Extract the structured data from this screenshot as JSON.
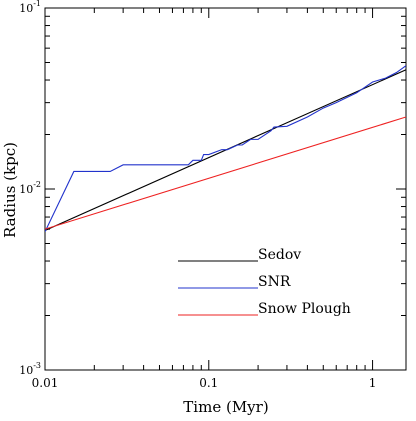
{
  "chart_data": {
    "type": "line",
    "title": "",
    "xlabel": "Time (Myr)",
    "ylabel": "Radius (kpc)",
    "xscale": "log",
    "yscale": "log",
    "xlim": [
      0.01,
      1.6
    ],
    "ylim": [
      0.001,
      0.1
    ],
    "grid": false,
    "legend_placement": "lower-center",
    "x_tick_labels": [
      {
        "value": 0.01,
        "label": "0.01"
      },
      {
        "value": 0.1,
        "label": "0.1"
      },
      {
        "value": 1,
        "label": "1"
      }
    ],
    "y_tick_labels": [
      {
        "value": 0.001,
        "base": "10",
        "exp": "-3"
      },
      {
        "value": 0.01,
        "base": "10",
        "exp": "-2"
      },
      {
        "value": 0.1,
        "base": "10",
        "exp": "-1"
      }
    ],
    "series": [
      {
        "name": "Sedov",
        "color": "#000000",
        "x": [
          0.01,
          1.6
        ],
        "y": [
          0.0059,
          0.0456
        ]
      },
      {
        "name": "SNR",
        "color": "#2233cc",
        "x": [
          0.01,
          0.015,
          0.025,
          0.03,
          0.075,
          0.08,
          0.09,
          0.093,
          0.1,
          0.12,
          0.13,
          0.15,
          0.16,
          0.18,
          0.2,
          0.24,
          0.25,
          0.3,
          0.4,
          0.5,
          0.6,
          0.8,
          1.0,
          1.2,
          1.4,
          1.6
        ],
        "y": [
          0.0058,
          0.0125,
          0.0125,
          0.0136,
          0.0136,
          0.0144,
          0.0144,
          0.0155,
          0.0155,
          0.0165,
          0.0165,
          0.0175,
          0.0175,
          0.0188,
          0.0188,
          0.021,
          0.022,
          0.0222,
          0.025,
          0.028,
          0.03,
          0.034,
          0.039,
          0.041,
          0.044,
          0.048
        ]
      },
      {
        "name": "Snow Plough",
        "color": "#ee2222",
        "x": [
          0.01,
          1.6
        ],
        "y": [
          0.006,
          0.025
        ]
      }
    ]
  }
}
